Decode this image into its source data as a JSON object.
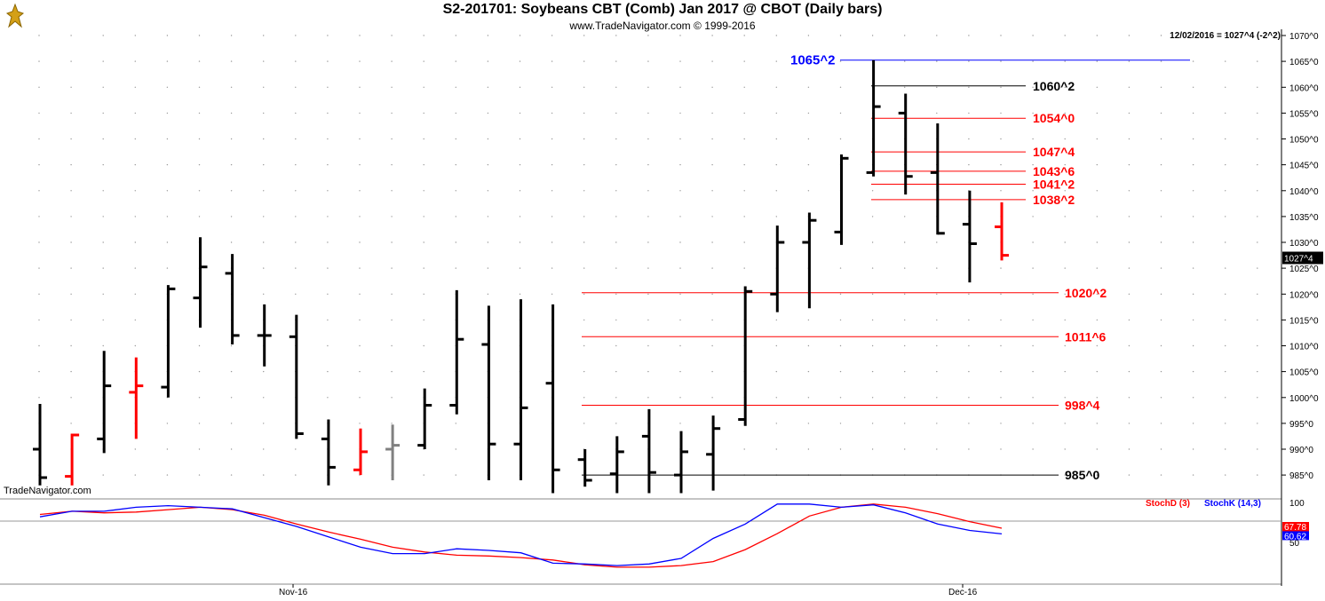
{
  "header": {
    "title": "S2-201701:  Soybeans CBT (Comb) Jan 2017 @ CBOT  (Daily bars)",
    "subtitle": "www.TradeNavigator.com © 1999-2016",
    "date_info": "12/02/2016 = 1027^4 (-2^2)",
    "watermark": "TradeNavigator.com",
    "logo_icon": "gold-bull-logo-icon"
  },
  "price_axis": {
    "ticks": [
      "1070^0",
      "1065^0",
      "1060^0",
      "1055^0",
      "1050^0",
      "1045^0",
      "1040^0",
      "1035^0",
      "1030^0",
      "1025^0",
      "1020^0",
      "1015^0",
      "1010^0",
      "1005^0",
      "1000^0",
      "995^0",
      "990^0",
      "985^0"
    ],
    "last_price_label": "1027^4"
  },
  "date_axis": {
    "labels": [
      "Nov-16",
      "Dec-16"
    ]
  },
  "levels": [
    {
      "label": "1065^2",
      "value": 1065.25,
      "color": "#0000ff"
    },
    {
      "label": "1060^2",
      "value": 1060.25,
      "color": "#000000"
    },
    {
      "label": "1054^0",
      "value": 1054.0,
      "color": "#ff0000"
    },
    {
      "label": "1047^4",
      "value": 1047.5,
      "color": "#ff0000"
    },
    {
      "label": "1043^6",
      "value": 1043.75,
      "color": "#ff0000"
    },
    {
      "label": "1041^2",
      "value": 1041.25,
      "color": "#ff0000"
    },
    {
      "label": "1038^2",
      "value": 1038.25,
      "color": "#ff0000"
    },
    {
      "label": "1020^2",
      "value": 1020.25,
      "color": "#ff0000"
    },
    {
      "label": "1011^6",
      "value": 1011.75,
      "color": "#ff0000"
    },
    {
      "label": "998^4",
      "value": 998.5,
      "color": "#ff0000"
    },
    {
      "label": "985^0",
      "value": 985.0,
      "color": "#000000"
    }
  ],
  "stochastic": {
    "label_d": "StochD (3)",
    "label_k": "StochK (14,3)",
    "axis_ticks": [
      "100",
      "50"
    ],
    "last_d_label": "67.78",
    "last_k_label": "60.62",
    "color_d": "#ff0000",
    "color_k": "#0000ff"
  },
  "chart_data": {
    "type": "ohlc",
    "title": "S2-201701:  Soybeans CBT (Comb) Jan 2017 @ CBOT  (Daily bars)",
    "ylim": [
      982,
      1072
    ],
    "bars": [
      {
        "open": 990.0,
        "high": 998.75,
        "low": 983.0,
        "close": 984.5,
        "color": "#000000"
      },
      {
        "open": 984.75,
        "high": 993.0,
        "low": 983.0,
        "close": 992.75,
        "color": "#ff0000"
      },
      {
        "open": 992.0,
        "high": 1009.0,
        "low": 989.25,
        "close": 1002.25,
        "color": "#000000"
      },
      {
        "open": 1001.0,
        "high": 1007.75,
        "low": 992.0,
        "close": 1002.25,
        "color": "#ff0000"
      },
      {
        "open": 1002.0,
        "high": 1021.75,
        "low": 1000.0,
        "close": 1021.0,
        "color": "#000000"
      },
      {
        "open": 1019.25,
        "high": 1031.0,
        "low": 1013.5,
        "close": 1025.25,
        "color": "#000000"
      },
      {
        "open": 1024.0,
        "high": 1027.75,
        "low": 1010.25,
        "close": 1012.0,
        "color": "#000000"
      },
      {
        "open": 1012.0,
        "high": 1018.0,
        "low": 1006.0,
        "close": 1012.0,
        "color": "#000000"
      },
      {
        "open": 1011.75,
        "high": 1016.0,
        "low": 992.0,
        "close": 993.0,
        "color": "#000000"
      },
      {
        "open": 992.0,
        "high": 995.75,
        "low": 983.0,
        "close": 986.5,
        "color": "#000000"
      },
      {
        "open": 986.0,
        "high": 994.0,
        "low": 985.0,
        "close": 989.5,
        "color": "#ff0000"
      },
      {
        "open": 990.0,
        "high": 994.75,
        "low": 984.0,
        "close": 990.75,
        "color": "#808080"
      },
      {
        "open": 990.75,
        "high": 1001.75,
        "low": 990.0,
        "close": 998.5,
        "color": "#000000"
      },
      {
        "open": 998.5,
        "high": 1020.75,
        "low": 996.75,
        "close": 1011.25,
        "color": "#000000"
      },
      {
        "open": 1010.25,
        "high": 1017.75,
        "low": 984.0,
        "close": 991.0,
        "color": "#000000"
      },
      {
        "open": 991.0,
        "high": 1019.0,
        "low": 984.0,
        "close": 998.0,
        "color": "#000000"
      },
      {
        "open": 1002.75,
        "high": 1018.0,
        "low": 981.5,
        "close": 986.0,
        "color": "#000000"
      },
      {
        "open": 988.0,
        "high": 990.0,
        "low": 982.75,
        "close": 984.0,
        "color": "#000000"
      },
      {
        "open": 985.25,
        "high": 992.5,
        "low": 981.5,
        "close": 989.5,
        "color": "#000000"
      },
      {
        "open": 992.5,
        "high": 997.75,
        "low": 981.5,
        "close": 985.5,
        "color": "#000000"
      },
      {
        "open": 985.0,
        "high": 993.5,
        "low": 981.5,
        "close": 989.5,
        "color": "#000000"
      },
      {
        "open": 989.0,
        "high": 996.5,
        "low": 982.0,
        "close": 994.0,
        "color": "#000000"
      },
      {
        "open": 995.75,
        "high": 1021.5,
        "low": 994.5,
        "close": 1020.5,
        "color": "#000000"
      },
      {
        "open": 1020.0,
        "high": 1033.25,
        "low": 1016.5,
        "close": 1030.0,
        "color": "#000000"
      },
      {
        "open": 1030.0,
        "high": 1035.75,
        "low": 1017.25,
        "close": 1034.25,
        "color": "#000000"
      },
      {
        "open": 1032.0,
        "high": 1047.0,
        "low": 1029.5,
        "close": 1046.25,
        "color": "#000000"
      },
      {
        "open": 1043.5,
        "high": 1065.25,
        "low": 1042.75,
        "close": 1056.25,
        "color": "#000000"
      },
      {
        "open": 1055.0,
        "high": 1058.75,
        "low": 1039.25,
        "close": 1042.75,
        "color": "#000000"
      },
      {
        "open": 1043.5,
        "high": 1053.0,
        "low": 1031.5,
        "close": 1031.75,
        "color": "#000000"
      },
      {
        "open": 1033.5,
        "high": 1040.0,
        "low": 1022.25,
        "close": 1029.75,
        "color": "#000000"
      },
      {
        "open": 1033.0,
        "high": 1037.75,
        "low": 1026.5,
        "close": 1027.5,
        "color": "#ff0000"
      }
    ],
    "stoch": {
      "ylim": [
        0,
        100
      ],
      "d": [
        85,
        89,
        87,
        88,
        91,
        94,
        91,
        84,
        73,
        63,
        54,
        44,
        38,
        34,
        33,
        31,
        28,
        22,
        19,
        19,
        21,
        26,
        41,
        61,
        83,
        94,
        98,
        94,
        86,
        76,
        67.78
      ],
      "k": [
        82,
        89,
        89,
        94,
        96,
        94,
        92,
        81,
        70,
        57,
        44,
        36,
        36,
        42,
        40,
        37,
        24,
        23,
        21,
        23,
        30,
        55,
        73,
        98,
        98,
        94,
        97,
        87,
        73,
        65,
        60.62
      ]
    }
  }
}
